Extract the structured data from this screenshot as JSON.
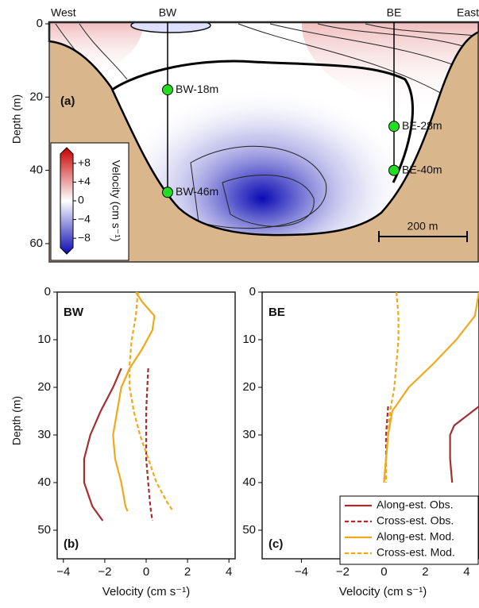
{
  "chart_data": [
    {
      "type": "section",
      "panel_label": "(a)",
      "y_label": "Depth (m)",
      "ylim": [
        0,
        65
      ],
      "yticks": [
        0,
        20,
        40,
        60
      ],
      "top_labels": [
        "West",
        "BW",
        "BE",
        "East"
      ],
      "stations": [
        {
          "name": "BW-18m",
          "depth": 18
        },
        {
          "name": "BW-46m",
          "depth": 46
        },
        {
          "name": "BE-28m",
          "depth": 28
        },
        {
          "name": "BE-40m",
          "depth": 40
        }
      ],
      "station_color": "#22dd22",
      "bottom_color": "#d9b68c",
      "colormap": [
        "#0a0ab4",
        "#ffffff",
        "#c80000"
      ],
      "colorbar": {
        "label": "Velocity (cm s⁻¹)",
        "clim": [
          -10,
          10
        ],
        "ticks": [
          {
            "value": 8,
            "label": "+8"
          },
          {
            "value": 4,
            "label": "+4"
          },
          0,
          {
            "value": -4,
            "label": "−4"
          },
          {
            "value": -8,
            "label": "−8"
          }
        ]
      },
      "scale_bar": "200 m"
    },
    {
      "type": "profile",
      "panel_label": "(b)",
      "station": "BW",
      "x_label": "Velocity (cm s⁻¹)",
      "y_label": "Depth (m)",
      "xlim": [
        -4.3,
        4.3
      ],
      "xticks": [
        {
          "value": -4,
          "label": "−4"
        },
        {
          "value": -2,
          "label": "−2"
        },
        0,
        2,
        4
      ],
      "ylim": [
        0,
        56
      ],
      "yticks": [
        0,
        10,
        20,
        30,
        40,
        50
      ],
      "series": [
        {
          "name": "Along-est. Obs.",
          "color": "#a3302f",
          "dash": false,
          "depth": [
            16,
            20,
            25,
            30,
            35,
            40,
            45,
            48
          ],
          "values": [
            -1.2,
            -1.6,
            -2.2,
            -2.7,
            -3.0,
            -3.0,
            -2.6,
            -2.1
          ]
        },
        {
          "name": "Cross-est. Obs.",
          "color": "#a3302f",
          "dash": true,
          "depth": [
            16,
            25,
            35,
            40,
            45,
            48
          ],
          "values": [
            0.1,
            0.0,
            0.0,
            0.1,
            0.2,
            0.3
          ]
        },
        {
          "name": "Along-est. Mod.",
          "color": "#f0a81c",
          "dash": false,
          "depth": [
            0,
            2,
            5,
            8,
            12,
            16,
            20,
            25,
            30,
            35,
            40,
            45,
            46
          ],
          "values": [
            -0.5,
            -0.2,
            0.4,
            0.3,
            -0.2,
            -0.8,
            -1.2,
            -1.4,
            -1.6,
            -1.5,
            -1.2,
            -1.0,
            -0.9
          ]
        },
        {
          "name": "Cross-est. Mod.",
          "color": "#f0a81c",
          "dash": true,
          "depth": [
            0,
            5,
            10,
            15,
            20,
            25,
            30,
            35,
            40,
            44,
            46
          ],
          "values": [
            -0.4,
            -0.5,
            -0.7,
            -0.8,
            -0.8,
            -0.6,
            -0.3,
            0.1,
            0.5,
            1.0,
            1.3
          ]
        }
      ]
    },
    {
      "type": "profile",
      "panel_label": "(c)",
      "station": "BE",
      "x_label": "Velocity (cm s⁻¹)",
      "legend": "lower right",
      "xlim": [
        -5.9,
        4.6
      ],
      "xticks": [
        {
          "value": -4,
          "label": "−4"
        },
        {
          "value": -2,
          "label": "−2"
        },
        0,
        2,
        4
      ],
      "ylim": [
        0,
        56
      ],
      "yticks": [
        0,
        10,
        20,
        30,
        40,
        50
      ],
      "series": [
        {
          "name": "Along-est. Obs.",
          "color": "#a3302f",
          "dash": false,
          "depth": [
            24,
            26,
            28,
            30,
            35,
            40
          ],
          "values": [
            4.6,
            4.0,
            3.4,
            3.2,
            3.2,
            3.3
          ]
        },
        {
          "name": "Cross-est. Obs.",
          "color": "#a3302f",
          "dash": true,
          "depth": [
            24,
            30,
            35,
            40
          ],
          "values": [
            0.2,
            0.1,
            0.1,
            0.0
          ]
        },
        {
          "name": "Along-est. Mod.",
          "color": "#f0a81c",
          "dash": false,
          "depth": [
            0,
            5,
            10,
            15,
            20,
            25,
            30,
            35,
            40
          ],
          "values": [
            4.6,
            4.4,
            3.5,
            2.4,
            1.2,
            0.4,
            0.2,
            0.1,
            0.0
          ]
        },
        {
          "name": "Cross-est. Mod.",
          "color": "#f0a81c",
          "dash": true,
          "depth": [
            0,
            5,
            10,
            15,
            20,
            25,
            30,
            35,
            40
          ],
          "values": [
            0.6,
            0.7,
            0.7,
            0.6,
            0.5,
            0.3,
            0.2,
            0.1,
            0.1
          ]
        }
      ]
    }
  ]
}
